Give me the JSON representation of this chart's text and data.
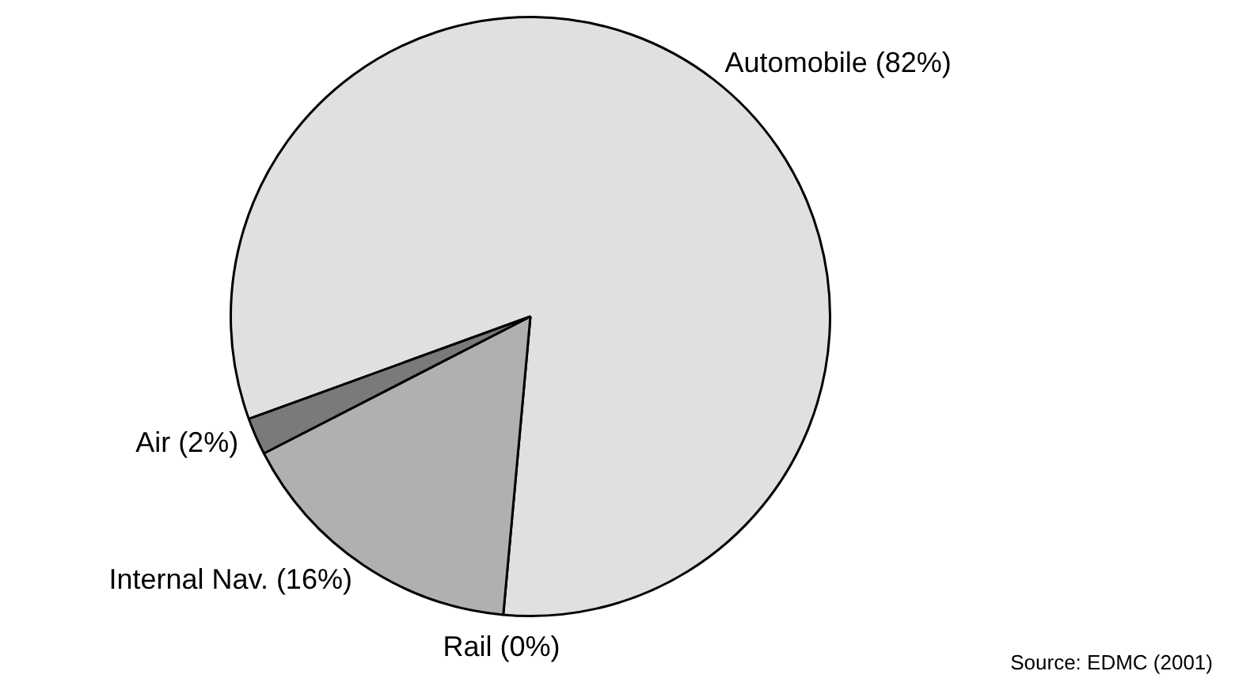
{
  "chart_data": {
    "type": "pie",
    "categories": [
      "Automobile (82%)",
      "Rail (0%)",
      "Internal Nav. (16%)",
      "Air (2%)"
    ],
    "values": [
      82,
      0,
      16,
      2
    ],
    "colors": [
      "#e0e0e0",
      "#000000",
      "#b0b0b0",
      "#7a7a7a"
    ],
    "legend": false,
    "annotations": [
      "Source: EDMC (2001)"
    ]
  }
}
